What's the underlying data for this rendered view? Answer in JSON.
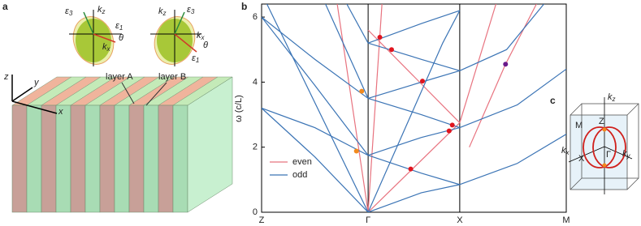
{
  "panel_a": {
    "label": "a",
    "layer_a": "layer A",
    "layer_b": "layer B",
    "axis_z": "z",
    "axis_y": "y",
    "axis_x": "x",
    "left": {
      "e3": {
        "base": "ε",
        "sub": "3"
      },
      "kz": {
        "base": "k",
        "sub": "z"
      },
      "e1": {
        "base": "ε",
        "sub": "1"
      },
      "theta": "θ",
      "kx": {
        "base": "k",
        "sub": "x"
      }
    },
    "right": {
      "kz": {
        "base": "k",
        "sub": "z"
      },
      "e3": {
        "base": "ε",
        "sub": "3"
      },
      "kx": {
        "base": "k",
        "sub": "x"
      },
      "theta": "θ",
      "e1": {
        "base": "ε",
        "sub": "1"
      }
    }
  },
  "chart_data": {
    "type": "line",
    "panel_label": "b",
    "ylabel": "ω (c/L)",
    "xlim": [
      0,
      2.86
    ],
    "xticks": [
      {
        "value": 0,
        "label": "Z"
      },
      {
        "value": 1,
        "label": "Γ"
      },
      {
        "value": 1.86,
        "label": "X"
      },
      {
        "value": 2.86,
        "label": "M"
      }
    ],
    "ylim": [
      0,
      6.4
    ],
    "yticks": [
      0,
      2,
      4,
      6
    ],
    "xgrid": true,
    "legend": "lower left",
    "series": [
      {
        "name": "even",
        "color": "#e8737f",
        "curves": [
          {
            "x": [
              0.71,
              1
            ],
            "values": [
              6.4,
              0
            ]
          },
          {
            "x": [
              1,
              1.13
            ],
            "values": [
              0,
              6.4
            ]
          },
          {
            "x": [
              1,
              1.86
            ],
            "values": [
              0,
              2.75
            ]
          },
          {
            "x": [
              1,
              1.86
            ],
            "values": [
              5.6,
              2.75
            ]
          },
          {
            "x": [
              1.86,
              2.2
            ],
            "values": [
              2.75,
              6.4
            ]
          },
          {
            "x": [
              1.95,
              2.29,
              2.58
            ],
            "values": [
              2.0,
              4.55,
              6.4
            ]
          }
        ]
      },
      {
        "name": "odd",
        "color": "#3b74b5",
        "curves": [
          {
            "x": [
              1,
              0.05
            ],
            "values": [
              0,
              6.4
            ]
          },
          {
            "x": [
              1,
              0.5,
              0
            ],
            "values": [
              0,
              1.7,
              3.2
            ]
          },
          {
            "x": [
              1,
              0.5,
              0
            ],
            "values": [
              1.75,
              2.6,
              3.2
            ]
          },
          {
            "x": [
              1,
              0.5,
              0
            ],
            "values": [
              1.75,
              3.9,
              6.0
            ]
          },
          {
            "x": [
              1,
              0.5,
              0
            ],
            "values": [
              3.5,
              4.7,
              6.0
            ]
          },
          {
            "x": [
              1,
              0.6
            ],
            "values": [
              3.5,
              6.4
            ]
          },
          {
            "x": [
              1,
              0.8
            ],
            "values": [
              5.2,
              6.4
            ]
          },
          {
            "x": [
              1,
              1.7,
              1.86
            ],
            "values": [
              0,
              5.2,
              6.2
            ]
          },
          {
            "x": [
              1,
              1.5,
              1.86
            ],
            "values": [
              0,
              0.6,
              0.85
            ]
          },
          {
            "x": [
              1,
              1.5,
              1.86
            ],
            "values": [
              1.75,
              1.2,
              0.85
            ]
          },
          {
            "x": [
              1,
              1.5,
              1.86
            ],
            "values": [
              1.75,
              2.3,
              2.6
            ]
          },
          {
            "x": [
              1,
              1.5,
              1.86
            ],
            "values": [
              3.5,
              3.0,
              2.6
            ]
          },
          {
            "x": [
              1,
              1.5,
              1.86
            ],
            "values": [
              3.5,
              4.0,
              4.35
            ]
          },
          {
            "x": [
              1,
              1.5,
              1.86
            ],
            "values": [
              5.2,
              4.7,
              4.35
            ]
          },
          {
            "x": [
              1,
              1.5,
              1.86
            ],
            "values": [
              5.2,
              5.8,
              6.2
            ]
          },
          {
            "x": [
              1.86,
              2.4,
              2.86
            ],
            "values": [
              0.85,
              1.5,
              2.4
            ]
          },
          {
            "x": [
              1.86,
              2.4,
              2.86
            ],
            "values": [
              2.6,
              3.3,
              4.4
            ]
          },
          {
            "x": [
              1.86,
              2.3,
              2.65
            ],
            "values": [
              4.35,
              5.0,
              6.4
            ]
          }
        ]
      }
    ],
    "points": {
      "x": [
        0.94,
        0.89,
        1.11,
        1.22,
        1.51,
        1.79,
        1.76,
        1.4,
        2.29
      ],
      "values": [
        3.72,
        1.88,
        5.38,
        5.0,
        4.03,
        2.68,
        2.5,
        1.33,
        4.55
      ],
      "colors": [
        "#f28a1e",
        "#f28a1e",
        "#e0141e",
        "#e0141e",
        "#e0141e",
        "#e0141e",
        "#e0141e",
        "#e0141e",
        "#6a1a8a"
      ]
    }
  },
  "panel_c": {
    "label": "c",
    "kz": {
      "base": "k",
      "sub": "z"
    },
    "kx": {
      "base": "k",
      "sub": "x"
    },
    "ky": {
      "base": "k",
      "sub": "y"
    },
    "Z": "Z",
    "M": "M",
    "X": "X",
    "G": "Γ"
  }
}
